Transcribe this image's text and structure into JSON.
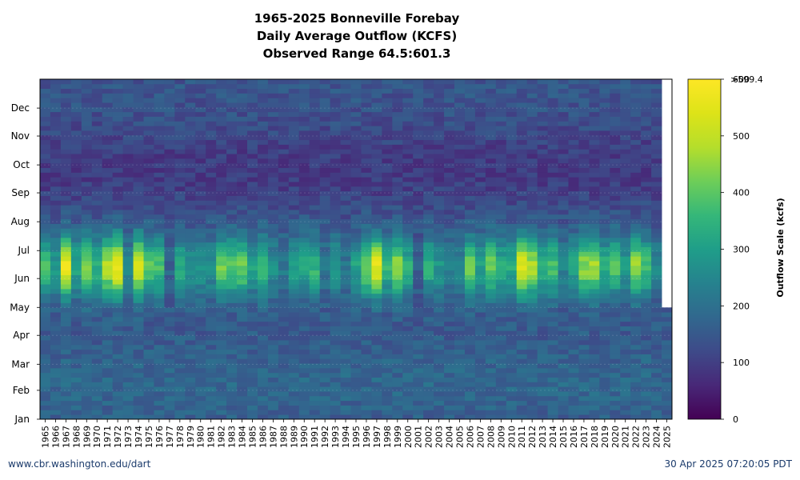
{
  "chart_data": {
    "type": "heatmap",
    "title_lines": [
      "1965-2025 Bonneville Forebay",
      "Daily Average Outflow (KCFS)",
      "Observed Range 64.5:601.3"
    ],
    "x_categories": [
      "1965",
      "1966",
      "1967",
      "1968",
      "1969",
      "1970",
      "1971",
      "1972",
      "1973",
      "1974",
      "1975",
      "1976",
      "1977",
      "1978",
      "1979",
      "1980",
      "1981",
      "1982",
      "1983",
      "1984",
      "1985",
      "1986",
      "1987",
      "1988",
      "1989",
      "1990",
      "1991",
      "1992",
      "1993",
      "1994",
      "1995",
      "1996",
      "1997",
      "1998",
      "1999",
      "2000",
      "2001",
      "2002",
      "2003",
      "2004",
      "2005",
      "2006",
      "2007",
      "2008",
      "2009",
      "2010",
      "2011",
      "2012",
      "2013",
      "2014",
      "2015",
      "2016",
      "2017",
      "2018",
      "2019",
      "2020",
      "2021",
      "2022",
      "2023",
      "2024",
      "2025"
    ],
    "y_tick_labels": [
      "Jan",
      "Feb",
      "Mar",
      "Apr",
      "May",
      "Jun",
      "Jul",
      "Aug",
      "Sep",
      "Oct",
      "Nov",
      "Dec"
    ],
    "y_tick_days": [
      1,
      32,
      60,
      91,
      121,
      152,
      182,
      213,
      244,
      274,
      305,
      335
    ],
    "y_range_days": [
      1,
      366
    ],
    "data_end_day_2025": 121,
    "colorbar": {
      "label": "Outflow Scale (kcfs)",
      "range": [
        0,
        600
      ],
      "ticks": [
        0,
        100,
        200,
        300,
        400,
        500,
        600
      ],
      "tick_labels": [
        "0",
        "100",
        "200",
        "300",
        "400",
        "500",
        "600"
      ],
      "max_label": ">599.4",
      "colormap": "viridis"
    },
    "baseline_kcfs": 150,
    "peak_flow_kcfs": {
      "1965": 380,
      "1966": 300,
      "1967": 560,
      "1968": 330,
      "1969": 440,
      "1970": 350,
      "1971": 490,
      "1972": 580,
      "1973": 260,
      "1974": 530,
      "1975": 400,
      "1976": 380,
      "1977": 180,
      "1978": 340,
      "1979": 280,
      "1980": 300,
      "1981": 280,
      "1982": 420,
      "1983": 390,
      "1984": 420,
      "1985": 310,
      "1986": 390,
      "1987": 270,
      "1988": 230,
      "1989": 300,
      "1990": 330,
      "1991": 360,
      "1992": 220,
      "1993": 310,
      "1994": 220,
      "1995": 310,
      "1996": 430,
      "1997": 560,
      "1998": 360,
      "1999": 450,
      "2000": 340,
      "2001": 170,
      "2002": 340,
      "2003": 290,
      "2004": 250,
      "2005": 250,
      "2006": 420,
      "2007": 310,
      "2008": 420,
      "2009": 330,
      "2010": 330,
      "2011": 540,
      "2012": 480,
      "2013": 350,
      "2014": 380,
      "2015": 250,
      "2016": 320,
      "2017": 450,
      "2018": 470,
      "2019": 340,
      "2020": 390,
      "2021": 300,
      "2022": 460,
      "2023": 380,
      "2024": 250,
      "2025": 240
    }
  },
  "footer": {
    "left_text": "www.cbr.washington.edu/dart",
    "right_text": "30 Apr 2025 07:20:05 PDT"
  }
}
